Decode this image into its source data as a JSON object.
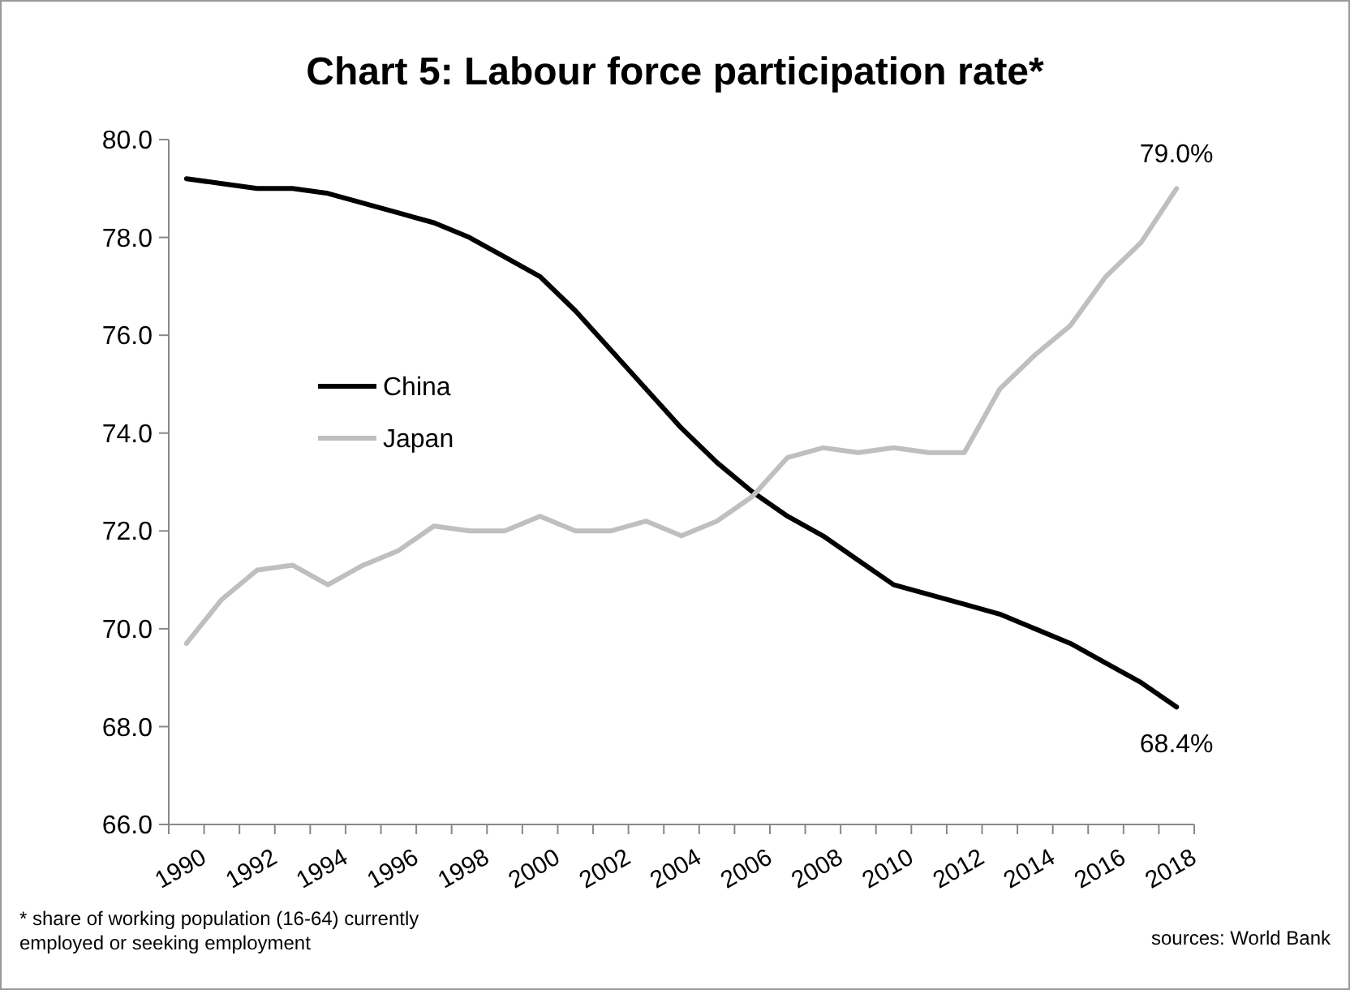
{
  "chart_data": {
    "type": "line",
    "title": "Chart 5: Labour force participation rate*",
    "categories": [
      "1990",
      null,
      "1992",
      null,
      "1994",
      null,
      "1996",
      null,
      "1998",
      null,
      "2000",
      null,
      "2002",
      null,
      "2004",
      null,
      "2006",
      null,
      "2008",
      null,
      "2010",
      null,
      "2012",
      null,
      "2014",
      null,
      "2016",
      null,
      "2018"
    ],
    "series": [
      {
        "name": "China",
        "color": "#000000",
        "values": [
          79.2,
          79.1,
          79.0,
          79.0,
          78.9,
          78.7,
          78.5,
          78.3,
          78.0,
          77.6,
          77.2,
          76.5,
          75.7,
          74.9,
          74.1,
          73.4,
          72.8,
          72.3,
          71.9,
          71.4,
          70.9,
          70.7,
          70.5,
          70.3,
          70.0,
          69.7,
          69.3,
          68.9,
          68.4
        ],
        "value_labels": [
          null,
          null,
          null,
          null,
          null,
          null,
          null,
          null,
          null,
          null,
          null,
          null,
          null,
          null,
          null,
          null,
          null,
          null,
          null,
          null,
          null,
          null,
          null,
          null,
          null,
          null,
          null,
          null,
          "68.4%"
        ]
      },
      {
        "name": "Japan",
        "color": "#bfbfbf",
        "values": [
          69.7,
          70.6,
          71.2,
          71.3,
          70.9,
          71.3,
          71.6,
          72.1,
          72.0,
          72.0,
          72.3,
          72.0,
          72.0,
          72.2,
          71.9,
          72.2,
          72.7,
          73.5,
          73.7,
          73.6,
          73.7,
          73.6,
          73.6,
          74.9,
          75.6,
          76.2,
          77.2,
          77.9,
          79.0
        ],
        "value_labels": [
          null,
          null,
          null,
          null,
          null,
          null,
          null,
          null,
          null,
          null,
          null,
          null,
          null,
          null,
          null,
          null,
          null,
          null,
          null,
          null,
          null,
          null,
          null,
          null,
          null,
          null,
          null,
          null,
          "79.0%"
        ]
      }
    ],
    "ylim": [
      66,
      80
    ],
    "yticks": [
      {
        "value": 66,
        "label": "66.0"
      },
      {
        "value": 68,
        "label": "68.0"
      },
      {
        "value": 70,
        "label": "70.0"
      },
      {
        "value": 72,
        "label": "72.0"
      },
      {
        "value": 74,
        "label": "74.0"
      },
      {
        "value": 76,
        "label": "76.0"
      },
      {
        "value": 78,
        "label": "78.0"
      },
      {
        "value": 80,
        "label": "80.0"
      }
    ],
    "legend": "left",
    "grid": false,
    "annotations": [
      "* share of working population (16-64) currently employed or seeking employment",
      "sources: World Bank"
    ]
  }
}
